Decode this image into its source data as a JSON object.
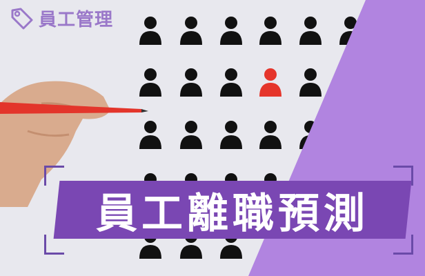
{
  "tag": {
    "label": "員工管理",
    "icon": "tag-icon"
  },
  "banner": {
    "title": "員工離職預測"
  },
  "colors": {
    "accent": "#b184e0",
    "banner": "#7a47b3",
    "highlight": "#e5352b",
    "figure": "#111111"
  }
}
